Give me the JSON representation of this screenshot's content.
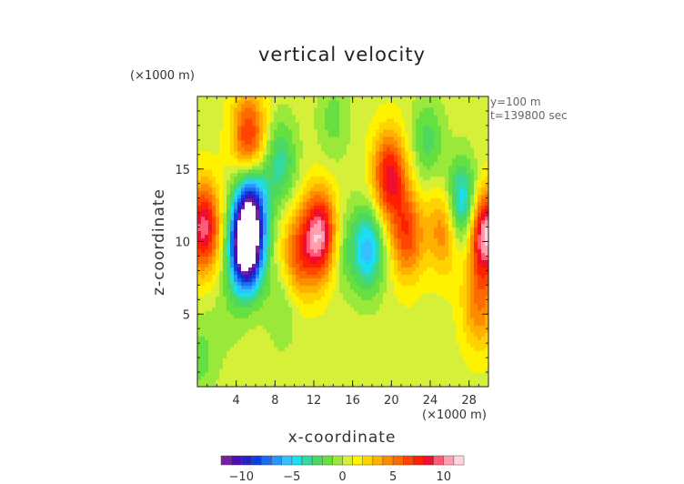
{
  "chart_data": {
    "type": "heatmap",
    "title": "vertical velocity",
    "xlabel": "x-coordinate",
    "ylabel": "z-coordinate",
    "x_unit": "(×1000 m)",
    "z_unit": "(×1000 m)",
    "annotations": [
      "y=100 m",
      "t=139800 sec"
    ],
    "xlim": [
      0,
      30
    ],
    "ylim": [
      0,
      20
    ],
    "x_ticks": [
      4,
      8,
      12,
      16,
      20,
      24,
      28
    ],
    "y_ticks": [
      5,
      10,
      15
    ],
    "x_tick_labels": [
      "4",
      "8",
      "12",
      "16",
      "20",
      "24",
      "28"
    ],
    "y_tick_labels": [
      "5",
      "10",
      "15"
    ],
    "colorbar": {
      "range": [
        -12,
        12
      ],
      "tick_values": [
        -10,
        -5,
        0,
        5,
        10
      ],
      "tick_labels": [
        "−10",
        "−5",
        "0",
        "5",
        "10"
      ],
      "levels": 24
    },
    "field_features": [
      {
        "x": 5.0,
        "z": 9.5,
        "value": -15
      },
      {
        "x": 5.5,
        "z": 12.5,
        "value": -9
      },
      {
        "x": 5.3,
        "z": 17.2,
        "value": 7
      },
      {
        "x": 0.6,
        "z": 11.0,
        "value": 9
      },
      {
        "x": 12.6,
        "z": 10.5,
        "value": 10
      },
      {
        "x": 10.3,
        "z": 9.0,
        "value": 5
      },
      {
        "x": 8.5,
        "z": 15.5,
        "value": -4
      },
      {
        "x": 8.8,
        "z": 5.8,
        "value": -2
      },
      {
        "x": 15.0,
        "z": 9.5,
        "value": -2
      },
      {
        "x": 17.6,
        "z": 9.5,
        "value": -6
      },
      {
        "x": 19.8,
        "z": 14.5,
        "value": 8
      },
      {
        "x": 21.6,
        "z": 10.5,
        "value": 6
      },
      {
        "x": 23.7,
        "z": 17.0,
        "value": -3
      },
      {
        "x": 27.2,
        "z": 12.5,
        "value": -7
      },
      {
        "x": 25.5,
        "z": 11.0,
        "value": 5
      },
      {
        "x": 29.7,
        "z": 10.5,
        "value": 11
      },
      {
        "x": 29.0,
        "z": 5.5,
        "value": 4
      },
      {
        "x": 14.0,
        "z": 18.5,
        "value": -2
      },
      {
        "x": 0.3,
        "z": 2.0,
        "value": -2
      },
      {
        "x": 3.0,
        "z": 5.0,
        "value": -1
      }
    ]
  }
}
